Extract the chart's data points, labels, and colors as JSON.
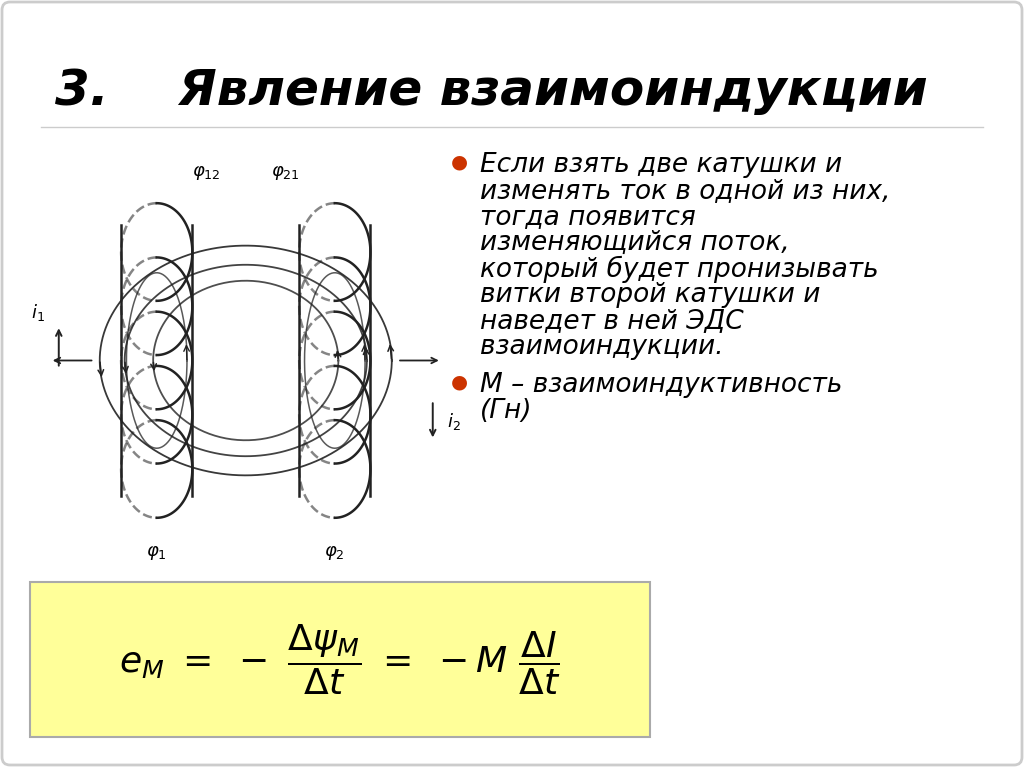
{
  "title": "3.    Явление взаимоиндукции",
  "title_fontsize": 36,
  "bg_color": "#ffffff",
  "border_color": "#cccccc",
  "bullet_color": "#cc3300",
  "bullet1_lines": [
    "Если взять две катушки и",
    "изменять ток в одной из них,",
    "тогда появится",
    "изменяющийся поток,",
    "который будет пронизывать",
    "витки второй катушки и",
    "наведет в ней ЭДС",
    "взаимоиндукции."
  ],
  "bullet2_lines": [
    "М – взаимоиндуктивность",
    "(Гн)"
  ],
  "text_fontsize": 19,
  "formula_box_color": "#ffff99",
  "formula_fontsize": 26
}
